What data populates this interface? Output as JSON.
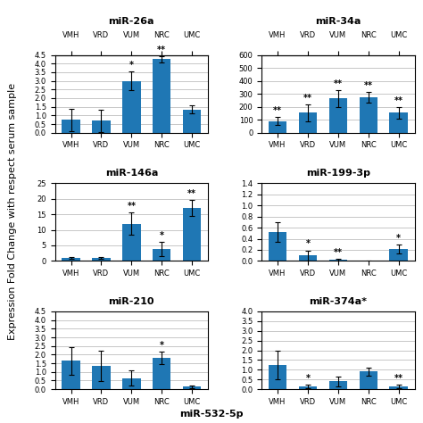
{
  "title": "miR-532-5p",
  "ylabel": "Expression Fold Change with respect serum sample",
  "chart_data": [
    {
      "type": "bar",
      "title": "miR-26a",
      "categories": [
        "VMH",
        "VRD",
        "VUM",
        "NRC",
        "UMC"
      ],
      "values": [
        0.75,
        0.7,
        3.0,
        4.25,
        1.35
      ],
      "errors": [
        0.65,
        0.65,
        0.55,
        0.2,
        0.25
      ],
      "annotations": [
        null,
        null,
        "*",
        "**",
        null
      ],
      "ylim": [
        0.0,
        4.5
      ],
      "yticks": [
        0.0,
        0.5,
        1.0,
        1.5,
        2.0,
        2.5,
        3.0,
        3.5,
        4.0,
        4.5
      ],
      "grid": true
    },
    {
      "type": "bar",
      "title": "miR-34a",
      "categories": [
        "VMH",
        "VRD",
        "VUM",
        "NRC",
        "UMC"
      ],
      "values": [
        90,
        155,
        265,
        275,
        155
      ],
      "errors": [
        30,
        65,
        65,
        40,
        45
      ],
      "annotations": [
        "**",
        "**",
        "**",
        "**",
        "**"
      ],
      "ylim": [
        0,
        600
      ],
      "yticks": [
        0,
        100,
        200,
        300,
        400,
        500,
        600
      ],
      "grid": true
    },
    {
      "type": "bar",
      "title": "miR-146a",
      "categories": [
        "VMH",
        "VRD",
        "VUM",
        "NRC",
        "UMC"
      ],
      "values": [
        1.1,
        1.0,
        12.0,
        3.8,
        17.0
      ],
      "errors": [
        0.3,
        0.3,
        3.5,
        2.2,
        2.5
      ],
      "annotations": [
        null,
        null,
        "**",
        "*",
        "**"
      ],
      "ylim": [
        0,
        25
      ],
      "yticks": [
        0,
        5,
        10,
        15,
        20,
        25
      ],
      "grid": true
    },
    {
      "type": "bar",
      "title": "miR-199-3p",
      "categories": [
        "VMH",
        "VRD",
        "VUM",
        "NRC",
        "UMC"
      ],
      "values": [
        0.52,
        0.1,
        0.02,
        0.0,
        0.22
      ],
      "errors": [
        0.18,
        0.09,
        0.02,
        0.01,
        0.08
      ],
      "annotations": [
        null,
        "*",
        "**",
        null,
        "*"
      ],
      "ylim": [
        0.0,
        1.4
      ],
      "yticks": [
        0.0,
        0.2,
        0.4,
        0.6,
        0.8,
        1.0,
        1.2,
        1.4
      ],
      "grid": true
    },
    {
      "type": "bar",
      "title": "miR-210",
      "categories": [
        "VMH",
        "VRD",
        "VUM",
        "NRC",
        "UMC"
      ],
      "values": [
        1.65,
        1.35,
        0.65,
        1.8,
        0.15
      ],
      "errors": [
        0.8,
        0.9,
        0.45,
        0.35,
        0.08
      ],
      "annotations": [
        null,
        null,
        null,
        "*",
        null
      ],
      "ylim": [
        0.0,
        4.5
      ],
      "yticks": [
        0.0,
        0.5,
        1.0,
        1.5,
        2.0,
        2.5,
        3.0,
        3.5,
        4.0,
        4.5
      ],
      "grid": true
    },
    {
      "type": "bar",
      "title": "miR-374a*",
      "categories": [
        "VMH",
        "VRD",
        "VUM",
        "NRC",
        "UMC"
      ],
      "values": [
        1.25,
        0.15,
        0.4,
        0.9,
        0.15
      ],
      "errors": [
        0.75,
        0.1,
        0.25,
        0.2,
        0.08
      ],
      "annotations": [
        null,
        "*",
        null,
        null,
        "**"
      ],
      "ylim": [
        0.0,
        4.0
      ],
      "yticks": [
        0.0,
        0.5,
        1.0,
        1.5,
        2.0,
        2.5,
        3.0,
        3.5,
        4.0
      ],
      "grid": true
    }
  ]
}
